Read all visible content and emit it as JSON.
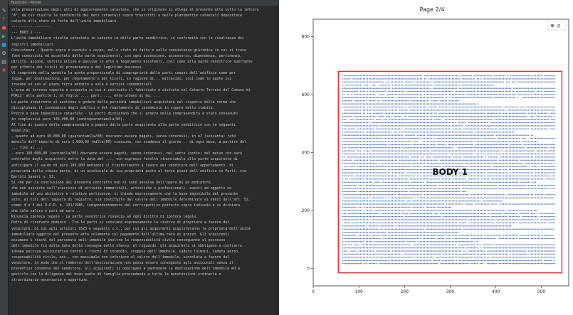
{
  "editor": {
    "tab_title": "Fascicolo - Parser",
    "tool_icons": [
      "edit-icon",
      "warning-icon",
      "error-icon",
      "run-icon",
      "debug-icon",
      "settings-icon",
      "print-icon",
      "delete-icon"
    ],
    "lines": [
      "alla presentazione degli atti di aggiornamento catastale, che in originale si allega al presente atto sotto la lettera",
      "\"A\", da cui risulta la conformità dei dati catastali sopra trascritti e delle planimetrie catastali depositate",
      "catasto allo stato di fatto dell'unità immobiliare.",
      "-------------------",
      "--- BODY 1 ---",
      "L'unità immobiliare risulta intestata in catasto in ditta parte venditrice, in conformità con le risultanze dei",
      "registri immobiliari.",
      "Consistenza - Quanto sopra è venduto a corpo, nello stato di fatto e nella consistenza giuridica in cui si trova",
      "(ben conosciuti ed accettati dalla parte acquirente), con ogni accessione, accessorio, dipendenza, pertinenza,",
      "diritto, azione, servitù attive e passive in atto e legalmente esistenti, così come alla parte venditrice spettante",
      "per effetto dei titoli di provenienza e del legittimo possesso.",
      "Vi comprende nella vendita la quota proporzionale di comproprietà delle parti comuni dell'edificio come per",
      "legge, per destinazione, per regolamento e per titoli, in ragione di... millesimi, così come le quote ivi",
      "trovano un uso al piano terra adibito a sala e servizi condominiali",
      "L'area di terreno coperta e scoperta su cui è costruito il fabbricato è distinta nel Catasto Terreni del Comune di",
      "PORLI' alle partite 1, al foglio ..., part. ..., ente urbano di mq. ...",
      "La parte acquirente al sostiene e godere delle porzioni immobiliari acquistate nel rispetto delle norme che",
      "disciplinano il condominio degli edifici e del regolamento di condominio in vigore nello stabile.",
      "Prezzo e base imponibile catastale - Le parti dichiarano che il prezzo della compravendita è stato convenuto",
      "in complessivi euro 140.000,00 (centoquarantamila/00).",
      "Al fine di quanto della compravendita a pagato dalla parte acquirente alla parte venditrice con le seguenti",
      "modalità:",
      "- quanto ad euro 40.000,00 (quarantamila/00) dovranno essere pagati, senza interessi, in n2 (sessanta) rate",
      "mensili dell'importo di euro 1.000,00 (mille/00) ciascuna, con scadenza il giorno .. di ogni mese, a partire dal",
      "... fino al ..;",
      "- euro 100.000,00 (centomila/00) dovranno essere pagati, senza interessi, nel sette (sette) del mutuo che sarà",
      "contratto dagli acquirenti entro la data del ..., con espresso facoltà rinunciabile alla parte acquirente di",
      "anticipare il saldo di euro 100.000 mediante il trasferimento a favore del venditore dell'appartamento, di",
      "proprietà della stessa parte, di un assolucale di sua proprietà posto al terzo piano dell'edificio in Forlì, via",
      "Bartoli Sandri n. 53;",
      "Si che per la conclusione del presente contratto non si sono avvalse dell'opera di un mediatore.",
      "che non sussiste nell'esercizio di attività commerciali, artistiche o professionali, aventi ad oggetto un",
      "immobile ad uso abitativo e relative pertinenze, si chiede espressamente che la base imponibile del presente",
      "atto, ai fini dell'imposta di registro, sia costituita dal valore dell'immobile determinato ai sensi dell'art. 52,",
      "commi 4 e 5 del D.P.R. n. 131/1986, indipendentemente dal corrispettivo pattuito sopra indicato e si dichiara",
      "che tale valore è pari ad euro ..",
      "Rinuncia ipoteca legale - La parte venditrice rinuncia ad ogni diritto di ipoteca legale.",
      "Patto di riservato dominio - Tra le parti si conviene espressamente la riserva di proprietà a favore del",
      "venditore, di cui agli articoli 1523 e seguenti c.c., per cui gli acquirenti acquisteranno la proprietà dell'unità",
      "immobiliare oggetto del presente atto solamente col pagamento dell'ultima rata di prezzo. Gli acquirenti",
      "assumono i rischi del pervenuto dell'immobile inoltre la responsabilità civile conseguente al possesso",
      "dell'immobile fin dalla data della consegna dello stesso; al riguardo, gli acquirenti si obbligano a contrarre",
      "idonea polizza assicurativa contro i rischi di incendio, scoppio dell'immobile, caduta fulmini, caduta aereo,",
      "responsabilità civile, ecc., con massimale non inferiore al valore dell'immobile, vincolata a favore del",
      "venditore, in modo che il rimborso dell'assicurazione non possa essere conseguito agli assicurati senza il",
      "preventivo consenso del venditore. Gli acquirenti si obbligano a mantenere la destinazione dell'immobile ed a",
      "gestirlo con la diligenza del buon padre di famiglia provvedendo a tutte le manutenzioni ordinarie e",
      "straordinarie necessarie e opportune."
    ]
  },
  "plot": {
    "title": "Page 2/4",
    "legend_label": "0",
    "box_label": "BODY 1",
    "colors": {
      "points": "#4c72b0",
      "box": "#e03030"
    }
  },
  "chart_data": {
    "type": "scatter",
    "title": "Page 2/4",
    "xlim": [
      0,
      560
    ],
    "ylim": [
      -60,
      860
    ],
    "x_ticks": [
      0,
      100,
      200,
      300,
      400,
      500
    ],
    "y_ticks": [
      0,
      200,
      400,
      600,
      800
    ],
    "legend": {
      "entries": [
        "0"
      ],
      "position": "top-right"
    },
    "series": [
      {
        "name": "0",
        "description_rows": {
          "y_start": 10,
          "y_end": 665,
          "step": 10.8,
          "x_start": 65,
          "x_end": 530
        }
      }
    ],
    "annotations": [
      {
        "type": "rect",
        "label": "BODY 1",
        "x": [
          55,
          545
        ],
        "y": [
          -15,
          680
        ],
        "color": "#e03030"
      }
    ]
  }
}
